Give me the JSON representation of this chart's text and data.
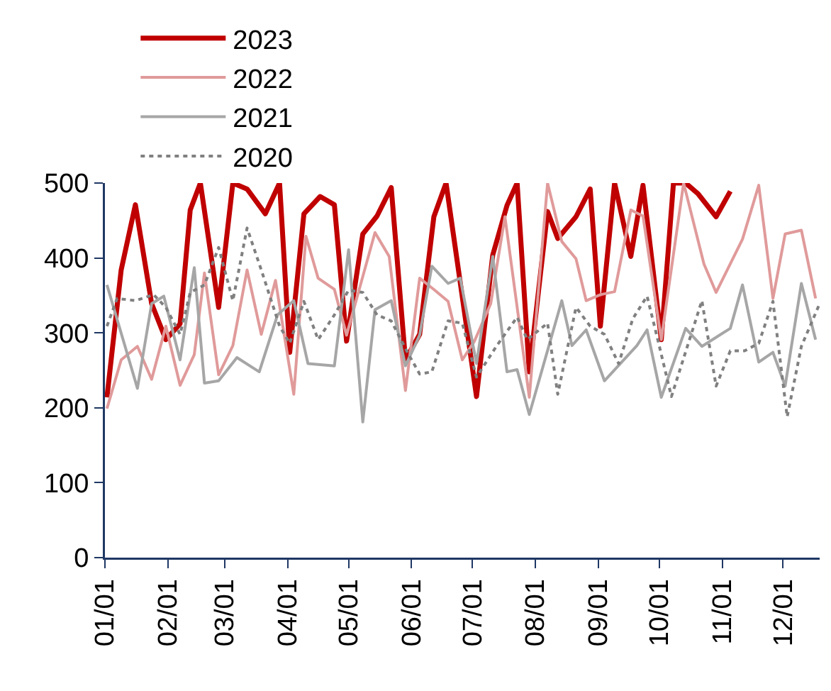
{
  "chart_data": {
    "type": "line",
    "legend": "top",
    "marker": "none",
    "grid": false,
    "xlim": [
      "--01-01",
      "--12-19"
    ],
    "xticks": [
      {
        "value": "--01-01",
        "label": "01/01"
      },
      {
        "value": "--02-01",
        "label": "02/01"
      },
      {
        "value": "--03-01",
        "label": "03/01"
      },
      {
        "value": "--04-01",
        "label": "04/01"
      },
      {
        "value": "--05-01",
        "label": "05/01"
      },
      {
        "value": "--06-01",
        "label": "06/01"
      },
      {
        "value": "--07-01",
        "label": "07/01"
      },
      {
        "value": "--08-01",
        "label": "08/01"
      },
      {
        "value": "--09-01",
        "label": "09/01"
      },
      {
        "value": "--10-01",
        "label": "10/01"
      },
      {
        "value": "--11-01",
        "label": "11/01"
      },
      {
        "value": "--12-01",
        "label": "12/01"
      }
    ],
    "ylim": [
      0,
      500
    ],
    "yticks": [
      0,
      100,
      200,
      300,
      400,
      500
    ],
    "series": [
      {
        "name": "2023",
        "color": "#c00000",
        "line_style": "solid",
        "x": [
          "--01-02",
          "--01-09",
          "--01-16",
          "--01-24",
          "--01-31",
          "--02-07",
          "--02-12",
          "--02-17",
          "--02-26",
          "--03-05",
          "--03-12",
          "--03-21",
          "--03-28",
          "--04-02",
          "--04-09",
          "--04-17",
          "--04-24",
          "--04-30",
          "--05-08",
          "--05-15",
          "--05-22",
          "--05-29",
          "--06-05",
          "--06-12",
          "--06-18",
          "--07-03",
          "--07-11",
          "--07-18",
          "--07-23",
          "--07-29",
          "--08-07",
          "--08-12",
          "--08-21",
          "--08-28",
          "--09-02",
          "--09-09",
          "--09-17",
          "--09-23",
          "--10-02",
          "--10-08",
          "--10-14",
          "--10-20",
          "--10-29",
          "--11-05"
        ],
        "values": [
          214,
          384,
          471,
          339,
          291,
          312,
          464,
          500,
          334,
          500,
          492,
          459,
          500,
          274,
          459,
          482,
          471,
          289,
          432,
          456,
          494,
          264,
          298,
          455,
          500,
          215,
          404,
          470,
          500,
          248,
          462,
          426,
          455,
          492,
          309,
          500,
          402,
          497,
          291,
          500,
          500,
          486,
          455,
          489
        ]
      },
      {
        "name": "2022",
        "color": "#e09a9a",
        "line_style": "solid",
        "x": [
          "--01-02",
          "--01-09",
          "--01-17",
          "--01-24",
          "--01-31",
          "--02-07",
          "--02-14",
          "--02-19",
          "--02-26",
          "--03-05",
          "--03-12",
          "--03-19",
          "--03-26",
          "--04-04",
          "--04-10",
          "--04-16",
          "--04-24",
          "--04-30",
          "--05-14",
          "--05-21",
          "--05-29",
          "--06-05",
          "--06-12",
          "--06-19",
          "--06-26",
          "--07-02",
          "--07-10",
          "--07-17",
          "--07-29",
          "--08-07",
          "--08-14",
          "--08-21",
          "--08-26",
          "--09-02",
          "--09-09",
          "--09-17",
          "--09-23",
          "--10-02",
          "--10-13",
          "--10-23",
          "--10-29",
          "--11-11",
          "--11-19",
          "--11-26",
          "--12-02",
          "--12-10",
          "--12-17"
        ],
        "values": [
          199,
          264,
          282,
          238,
          309,
          230,
          271,
          380,
          244,
          283,
          384,
          298,
          370,
          218,
          429,
          373,
          358,
          297,
          434,
          402,
          223,
          373,
          358,
          342,
          264,
          289,
          339,
          455,
          214,
          500,
          422,
          399,
          343,
          351,
          355,
          464,
          456,
          291,
          500,
          392,
          354,
          425,
          497,
          346,
          432,
          437,
          346
        ]
      },
      {
        "name": "2021",
        "color": "#a6a6a6",
        "line_style": "solid",
        "x": [
          "--01-02",
          "--01-17",
          "--01-24",
          "--01-30",
          "--02-07",
          "--02-14",
          "--02-19",
          "--02-26",
          "--03-07",
          "--03-18",
          "--03-27",
          "--04-04",
          "--04-11",
          "--04-24",
          "--05-01",
          "--05-08",
          "--05-14",
          "--05-22",
          "--05-29",
          "--06-05",
          "--06-11",
          "--06-19",
          "--06-25",
          "--07-03",
          "--07-11",
          "--07-18",
          "--07-23",
          "--07-29",
          "--08-14",
          "--08-19",
          "--08-26",
          "--09-04",
          "--09-20",
          "--09-25",
          "--10-02",
          "--10-14",
          "--10-22",
          "--11-05",
          "--11-11",
          "--11-19",
          "--11-26",
          "--12-02",
          "--12-10",
          "--12-17"
        ],
        "values": [
          364,
          226,
          339,
          349,
          264,
          387,
          233,
          236,
          267,
          248,
          324,
          343,
          259,
          256,
          411,
          181,
          331,
          343,
          256,
          297,
          389,
          366,
          373,
          259,
          402,
          248,
          251,
          191,
          343,
          283,
          304,
          236,
          283,
          304,
          214,
          306,
          282,
          306,
          364,
          261,
          274,
          229,
          366,
          291
        ]
      },
      {
        "name": "2020",
        "color": "#808080",
        "line_style": "dotted",
        "x": [
          "--01-02",
          "--01-07",
          "--01-16",
          "--01-25",
          "--01-31",
          "--02-07",
          "--02-12",
          "--02-19",
          "--02-26",
          "--03-05",
          "--03-12",
          "--03-19",
          "--03-28",
          "--04-02",
          "--04-09",
          "--04-16",
          "--04-24",
          "--05-01",
          "--05-08",
          "--05-15",
          "--05-22",
          "--05-30",
          "--06-05",
          "--06-11",
          "--06-19",
          "--06-26",
          "--07-03",
          "--07-13",
          "--07-23",
          "--07-28",
          "--08-07",
          "--08-12",
          "--08-21",
          "--08-28",
          "--09-04",
          "--09-11",
          "--09-18",
          "--09-25",
          "--09-30",
          "--10-07",
          "--10-22",
          "--10-29",
          "--11-05",
          "--11-12",
          "--11-19",
          "--11-26",
          "--12-03",
          "--12-10",
          "--12-19"
        ],
        "values": [
          309,
          346,
          343,
          351,
          334,
          298,
          354,
          364,
          414,
          343,
          440,
          384,
          309,
          286,
          342,
          291,
          324,
          357,
          354,
          324,
          316,
          274,
          245,
          248,
          316,
          313,
          241,
          283,
          321,
          291,
          313,
          218,
          334,
          309,
          298,
          259,
          319,
          349,
          294,
          215,
          343,
          229,
          276,
          276,
          286,
          342,
          188,
          282,
          339
        ]
      }
    ]
  }
}
